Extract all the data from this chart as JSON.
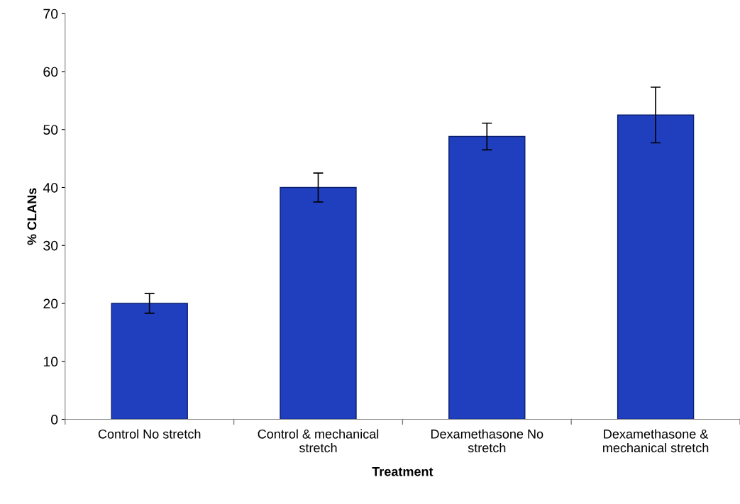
{
  "chart_data": {
    "type": "bar",
    "xlabel": "Treatment",
    "ylabel": "% CLANs",
    "categories": [
      "Control No stretch",
      "Control & mechanical\nstretch",
      "Dexamethasone No\nstretch",
      "Dexamethasone &\nmechanical stretch"
    ],
    "values": [
      20,
      40,
      48.8,
      52.5
    ],
    "errors": [
      1.7,
      2.5,
      2.3,
      4.8
    ],
    "color": "#1f3fbf",
    "ylim": [
      0,
      70
    ],
    "yticks": [
      0,
      10,
      20,
      30,
      40,
      50,
      60,
      70
    ],
    "grid": false
  }
}
